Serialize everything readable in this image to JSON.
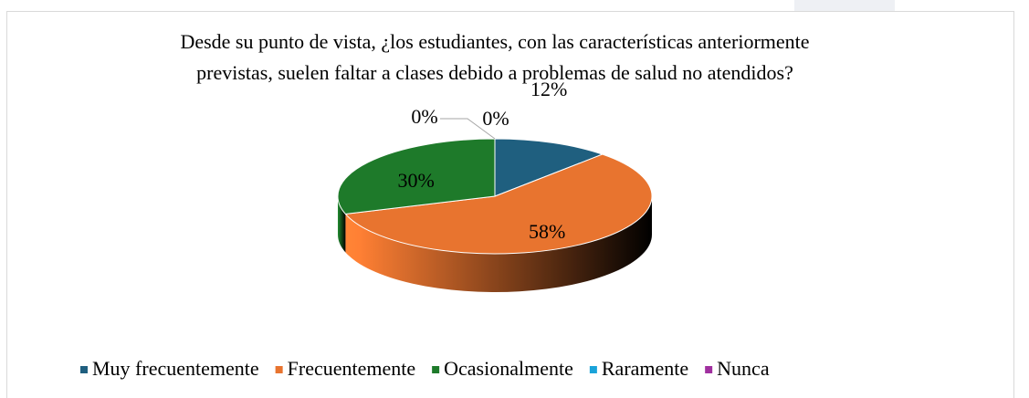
{
  "chart_data": {
    "type": "pie3d",
    "title": [
      "Desde su punto de vista, ¿los estudiantes, con las características anteriormente",
      "previstas, suelen faltar a clases debido a problemas de salud no atendidos?"
    ],
    "categories": [
      "Muy frecuentemente",
      "Frecuentemente",
      "Ocasionalmente",
      "Raramente",
      "Nunca"
    ],
    "values": [
      12,
      58,
      30,
      0,
      0
    ],
    "value_labels": [
      "12%",
      "58%",
      "30%",
      "0%",
      "0%"
    ],
    "colors": [
      "#1f5f7f",
      "#e8742f",
      "#1e7a2a",
      "#1aa3d9",
      "#a0309f"
    ],
    "legend": "bottom"
  }
}
